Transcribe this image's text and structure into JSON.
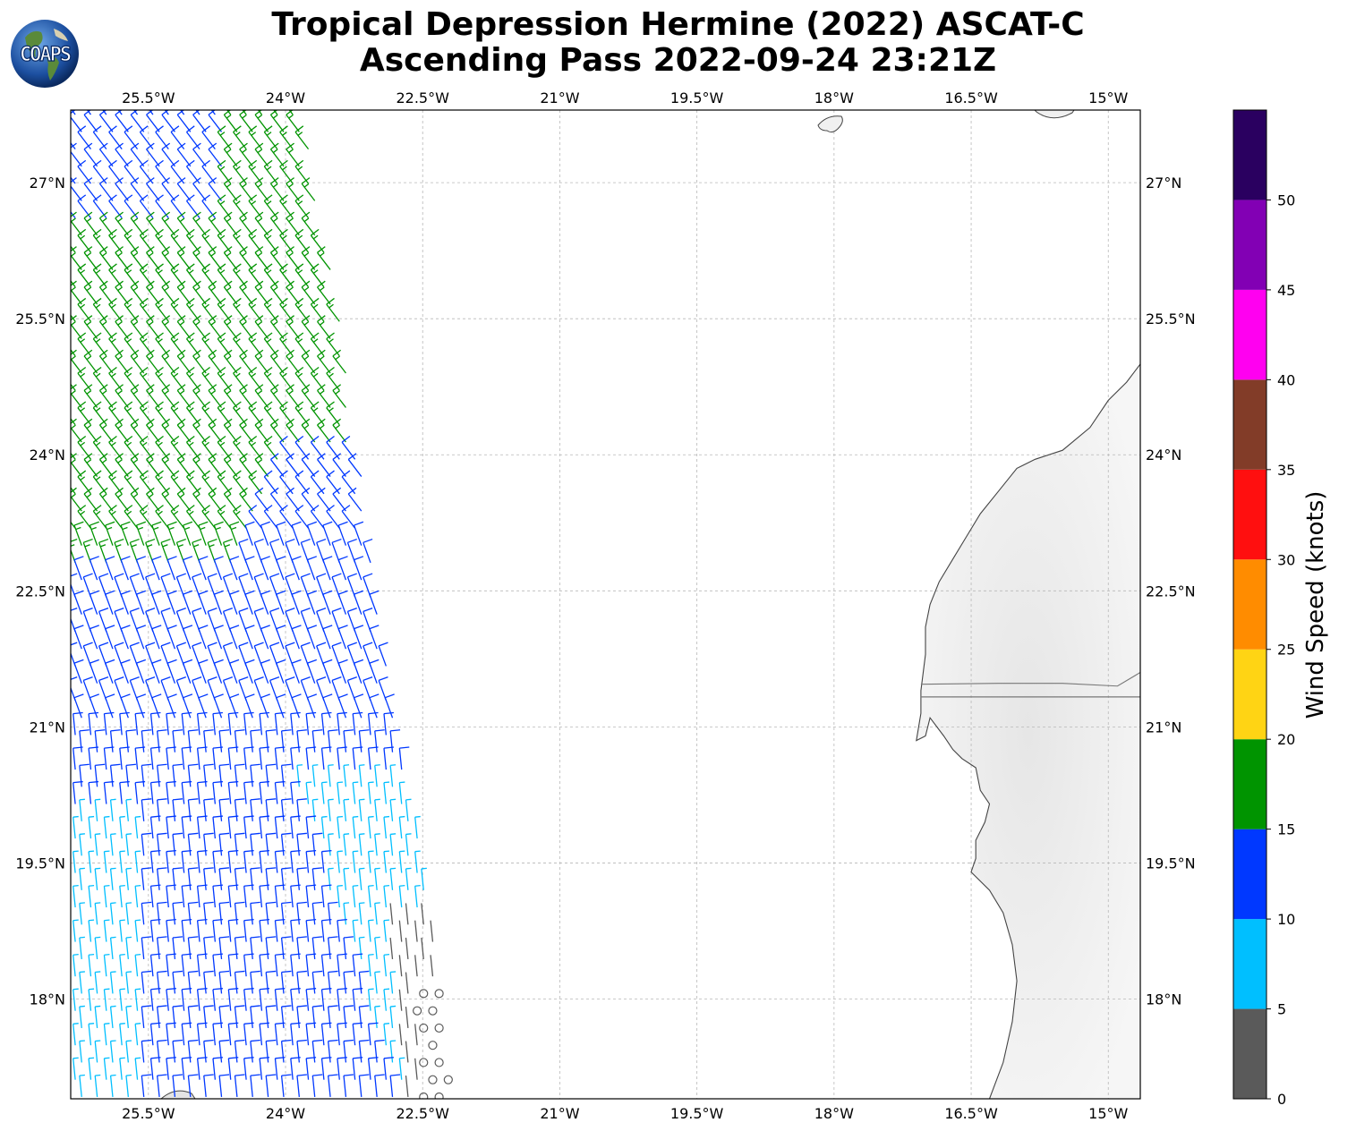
{
  "title_line1": "Tropical Depression Hermine (2022) ASCAT-C",
  "title_line2": "Ascending Pass 2022-09-24 23:21Z",
  "logo_text": "COAPS",
  "map": {
    "lon_min": -26.35,
    "lon_max": -14.65,
    "lat_min": 16.9,
    "lat_max": 27.8,
    "lon_ticks": [
      {
        "value": -25.5,
        "label": "25.5°W"
      },
      {
        "value": -24,
        "label": "24°W"
      },
      {
        "value": -22.5,
        "label": "22.5°W"
      },
      {
        "value": -21,
        "label": "21°W"
      },
      {
        "value": -19.5,
        "label": "19.5°W"
      },
      {
        "value": -18,
        "label": "18°W"
      },
      {
        "value": -16.5,
        "label": "16.5°W"
      },
      {
        "value": -15,
        "label": "15°W"
      }
    ],
    "lat_ticks": [
      {
        "value": 27,
        "label": "27°N"
      },
      {
        "value": 25.5,
        "label": "25.5°N"
      },
      {
        "value": 24,
        "label": "24°N"
      },
      {
        "value": 22.5,
        "label": "22.5°N"
      },
      {
        "value": 21,
        "label": "21°N"
      },
      {
        "value": 19.5,
        "label": "19.5°N"
      },
      {
        "value": 18,
        "label": "18°N"
      }
    ],
    "coastline": [
      [
        -14.65,
        25.0
      ],
      [
        -14.8,
        24.8
      ],
      [
        -15.0,
        24.6
      ],
      [
        -15.2,
        24.3
      ],
      [
        -15.5,
        24.05
      ],
      [
        -15.8,
        23.95
      ],
      [
        -16.0,
        23.85
      ],
      [
        -16.2,
        23.6
      ],
      [
        -16.4,
        23.35
      ],
      [
        -16.55,
        23.1
      ],
      [
        -16.7,
        22.85
      ],
      [
        -16.85,
        22.6
      ],
      [
        -16.95,
        22.35
      ],
      [
        -17.0,
        22.1
      ],
      [
        -17.0,
        21.8
      ],
      [
        -17.05,
        21.4
      ],
      [
        -17.05,
        21.15
      ],
      [
        -17.1,
        20.85
      ],
      [
        -17.0,
        20.9
      ],
      [
        -16.95,
        21.1
      ],
      [
        -16.8,
        20.9
      ],
      [
        -16.7,
        20.75
      ],
      [
        -16.6,
        20.65
      ],
      [
        -16.45,
        20.55
      ],
      [
        -16.4,
        20.3
      ],
      [
        -16.3,
        20.15
      ],
      [
        -16.35,
        19.95
      ],
      [
        -16.45,
        19.75
      ],
      [
        -16.45,
        19.55
      ],
      [
        -16.5,
        19.4
      ],
      [
        -16.3,
        19.2
      ],
      [
        -16.15,
        18.95
      ],
      [
        -16.05,
        18.6
      ],
      [
        -16.0,
        18.2
      ],
      [
        -16.05,
        17.75
      ],
      [
        -16.15,
        17.3
      ],
      [
        -16.3,
        16.9
      ]
    ],
    "border": [
      [
        -17.05,
        21.33
      ],
      [
        -14.65,
        21.33
      ]
    ],
    "border2": [
      [
        -17.05,
        21.47
      ],
      [
        -16.2,
        21.48
      ],
      [
        -15.5,
        21.48
      ],
      [
        -14.9,
        21.45
      ],
      [
        -14.65,
        21.6
      ]
    ],
    "wind_swath": {
      "west_edge": [
        [
          27.8,
          -26.35
        ],
        [
          16.9,
          -26.35
        ]
      ],
      "east_edge": [
        [
          27.8,
          -23.8
        ],
        [
          25.5,
          -23.4
        ],
        [
          24.0,
          -23.2
        ],
        [
          22.5,
          -23.0
        ],
        [
          21.0,
          -22.8
        ],
        [
          19.5,
          -22.5
        ],
        [
          18.0,
          -22.3
        ],
        [
          16.9,
          -22.2
        ]
      ]
    }
  },
  "colorbar": {
    "label": "Wind Speed (knots)",
    "bins": [
      {
        "min": 0,
        "max": 5,
        "color": "#5a5a5a"
      },
      {
        "min": 5,
        "max": 10,
        "color": "#00bfff"
      },
      {
        "min": 10,
        "max": 15,
        "color": "#0038ff"
      },
      {
        "min": 15,
        "max": 20,
        "color": "#009400"
      },
      {
        "min": 20,
        "max": 25,
        "color": "#ffd414"
      },
      {
        "min": 25,
        "max": 30,
        "color": "#ff8c00"
      },
      {
        "min": 30,
        "max": 35,
        "color": "#ff0f0f"
      },
      {
        "min": 35,
        "max": 40,
        "color": "#823c28"
      },
      {
        "min": 40,
        "max": 45,
        "color": "#ff00f0"
      },
      {
        "min": 45,
        "max": 50,
        "color": "#8200b4"
      },
      {
        "min": 50,
        "max": 55,
        "color": "#2a0060"
      }
    ],
    "ticks": [
      "0",
      "5",
      "10",
      "15",
      "20",
      "25",
      "30",
      "35",
      "40",
      "45",
      "50"
    ]
  }
}
